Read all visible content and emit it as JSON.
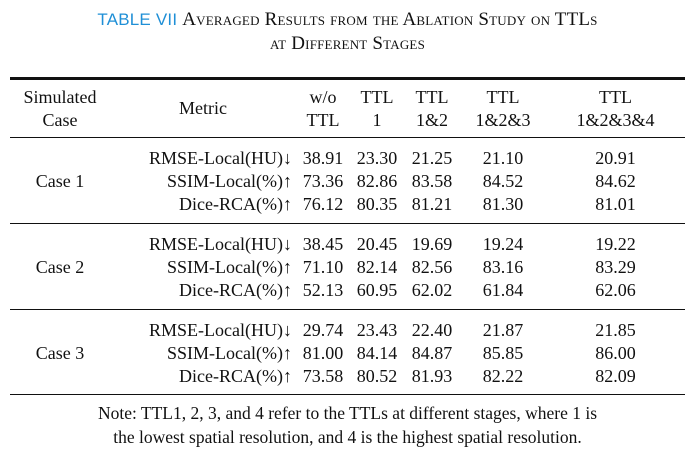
{
  "caption": {
    "label": "TABLE VII",
    "line1": "Averaged Results from the Ablation Study on TTLs",
    "line2": "at Different Stages"
  },
  "table": {
    "headers": {
      "case": [
        "Simulated",
        "Case"
      ],
      "metric": "Metric",
      "columns": [
        [
          "w/o",
          "TTL"
        ],
        [
          "TTL",
          "1"
        ],
        [
          "TTL",
          "1&2"
        ],
        [
          "TTL",
          "1&2&3"
        ],
        [
          "TTL",
          "1&2&3&4"
        ]
      ]
    },
    "groups": [
      {
        "case": "Case 1",
        "rows": [
          {
            "metric": "RMSE-Local(HU)↓",
            "values": [
              "38.91",
              "23.30",
              "21.25",
              "21.10",
              "20.91"
            ],
            "bold_index": 4
          },
          {
            "metric": "SSIM-Local(%)↑",
            "values": [
              "73.36",
              "82.86",
              "83.58",
              "84.52",
              "84.62"
            ],
            "bold_index": 4
          },
          {
            "metric": "Dice-RCA(%)↑",
            "values": [
              "76.12",
              "80.35",
              "81.21",
              "81.30",
              "81.01"
            ],
            "bold_index": 3
          }
        ]
      },
      {
        "case": "Case 2",
        "rows": [
          {
            "metric": "RMSE-Local(HU)↓",
            "values": [
              "38.45",
              "20.45",
              "19.69",
              "19.24",
              "19.22"
            ],
            "bold_index": 4
          },
          {
            "metric": "SSIM-Local(%)↑",
            "values": [
              "71.10",
              "82.14",
              "82.56",
              "83.16",
              "83.29"
            ],
            "bold_index": 4
          },
          {
            "metric": "Dice-RCA(%)↑",
            "values": [
              "52.13",
              "60.95",
              "62.02",
              "61.84",
              "62.06"
            ],
            "bold_index": 4
          }
        ]
      },
      {
        "case": "Case 3",
        "rows": [
          {
            "metric": "RMSE-Local(HU)↓",
            "values": [
              "29.74",
              "23.43",
              "22.40",
              "21.87",
              "21.85"
            ],
            "bold_index": 4
          },
          {
            "metric": "SSIM-Local(%)↑",
            "values": [
              "81.00",
              "84.14",
              "84.87",
              "85.85",
              "86.00"
            ],
            "bold_index": 4
          },
          {
            "metric": "Dice-RCA(%)↑",
            "values": [
              "73.58",
              "80.52",
              "81.93",
              "82.22",
              "82.09"
            ],
            "bold_index": 3
          }
        ]
      }
    ]
  },
  "note": {
    "line1": "Note: TTL1, 2, 3, and 4 refer to the TTLs at different stages, where 1 is",
    "line2": "the lowest spatial resolution, and 4 is the highest spatial resolution."
  }
}
